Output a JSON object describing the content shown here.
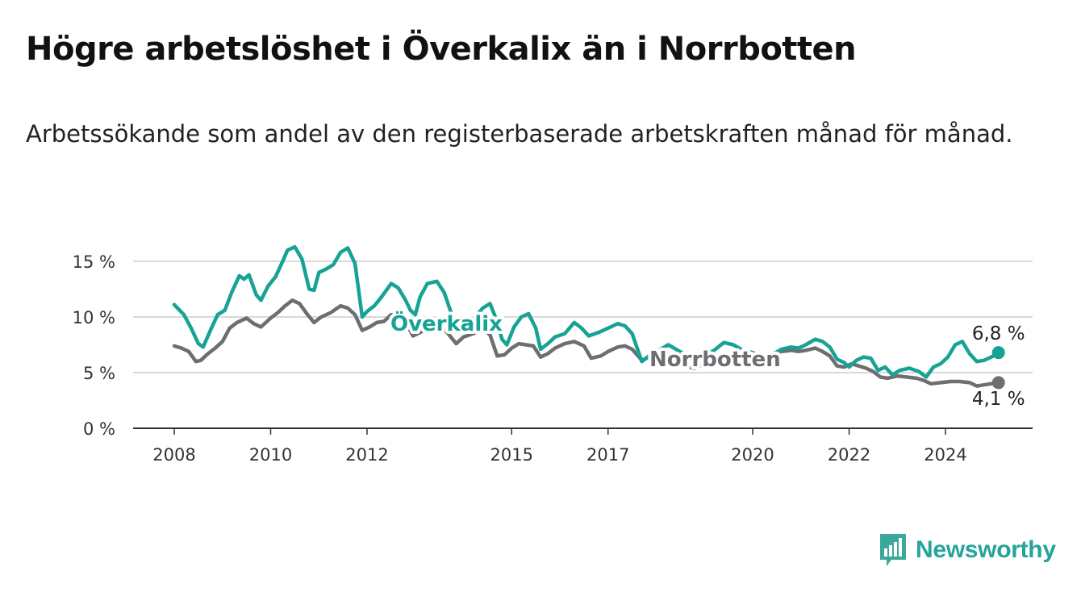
{
  "header": {
    "title": "Högre arbetslöshet i Överkalix än i Norrbotten",
    "subtitle": "Arbetssökande som andel av den registerbaserade arbetskraften månad för månad."
  },
  "brand": {
    "name": "Newsworthy",
    "icon": "bar-chart-icon",
    "color": "#25a49a"
  },
  "chart_data": {
    "type": "line",
    "title": "Högre arbetslöshet i Överkalix än i Norrbotten",
    "subtitle": "Arbetssökande som andel av den registerbaserade arbetskraften månad för månad.",
    "xlabel": "",
    "ylabel": "",
    "xlim": [
      2007.9,
      2025.3
    ],
    "ylim": [
      0,
      15
    ],
    "y_ticks": [
      0,
      5,
      10,
      15
    ],
    "y_tick_labels": [
      "0 %",
      "5 %",
      "10 %",
      "15 %"
    ],
    "x_ticks": [
      2008,
      2010,
      2012,
      2015,
      2017,
      2020,
      2022,
      2024
    ],
    "x_tick_labels": [
      "2008",
      "2010",
      "2012",
      "2015",
      "2017",
      "2020",
      "2022",
      "2024"
    ],
    "grid": "horizontal",
    "legend": "inline labels",
    "series": [
      {
        "name": "Överkalix",
        "color": "#16a394",
        "end_label": "6,8 %",
        "points": [
          [
            2008.0,
            11.1
          ],
          [
            2008.2,
            10.2
          ],
          [
            2008.35,
            9.0
          ],
          [
            2008.5,
            7.6
          ],
          [
            2008.6,
            7.3
          ],
          [
            2008.75,
            8.8
          ],
          [
            2008.9,
            10.2
          ],
          [
            2009.05,
            10.6
          ],
          [
            2009.2,
            12.3
          ],
          [
            2009.35,
            13.7
          ],
          [
            2009.45,
            13.4
          ],
          [
            2009.55,
            13.8
          ],
          [
            2009.7,
            12.0
          ],
          [
            2009.8,
            11.5
          ],
          [
            2009.95,
            12.8
          ],
          [
            2010.1,
            13.6
          ],
          [
            2010.25,
            15.0
          ],
          [
            2010.35,
            16.0
          ],
          [
            2010.5,
            16.3
          ],
          [
            2010.65,
            15.2
          ],
          [
            2010.8,
            12.5
          ],
          [
            2010.9,
            12.4
          ],
          [
            2011.0,
            14.0
          ],
          [
            2011.15,
            14.3
          ],
          [
            2011.3,
            14.7
          ],
          [
            2011.45,
            15.8
          ],
          [
            2011.6,
            16.2
          ],
          [
            2011.75,
            14.8
          ],
          [
            2011.9,
            10.0
          ],
          [
            2012.0,
            10.5
          ],
          [
            2012.15,
            11.0
          ],
          [
            2012.3,
            11.8
          ],
          [
            2012.5,
            13.0
          ],
          [
            2012.65,
            12.6
          ],
          [
            2012.8,
            11.5
          ],
          [
            2012.9,
            10.6
          ],
          [
            2013.0,
            10.2
          ],
          [
            2013.1,
            11.8
          ],
          [
            2013.25,
            13.0
          ],
          [
            2013.45,
            13.2
          ],
          [
            2013.6,
            12.2
          ],
          [
            2013.75,
            10.3
          ],
          [
            2013.9,
            9.3
          ],
          [
            2014.05,
            9.5
          ],
          [
            2014.2,
            9.8
          ],
          [
            2014.4,
            10.8
          ],
          [
            2014.55,
            11.2
          ],
          [
            2014.7,
            9.6
          ],
          [
            2014.8,
            8.0
          ],
          [
            2014.9,
            7.5
          ],
          [
            2015.05,
            9.1
          ],
          [
            2015.2,
            10.0
          ],
          [
            2015.35,
            10.3
          ],
          [
            2015.5,
            9.0
          ],
          [
            2015.6,
            7.1
          ],
          [
            2015.75,
            7.6
          ],
          [
            2015.9,
            8.2
          ],
          [
            2016.1,
            8.5
          ],
          [
            2016.3,
            9.5
          ],
          [
            2016.45,
            9.0
          ],
          [
            2016.6,
            8.3
          ],
          [
            2016.8,
            8.6
          ],
          [
            2017.0,
            9.0
          ],
          [
            2017.2,
            9.4
          ],
          [
            2017.35,
            9.2
          ],
          [
            2017.5,
            8.5
          ],
          [
            2017.7,
            6.0
          ],
          [
            2017.85,
            6.5
          ],
          [
            2018.05,
            7.0
          ],
          [
            2018.25,
            7.5
          ],
          [
            2018.45,
            7.0
          ],
          [
            2018.65,
            6.5
          ],
          [
            2018.85,
            6.0
          ],
          [
            2019.0,
            6.6
          ],
          [
            2019.2,
            7.0
          ],
          [
            2019.4,
            7.7
          ],
          [
            2019.6,
            7.5
          ],
          [
            2019.8,
            7.0
          ],
          [
            2020.0,
            6.8
          ],
          [
            2020.2,
            6.4
          ],
          [
            2020.4,
            6.6
          ],
          [
            2020.6,
            7.1
          ],
          [
            2020.8,
            7.3
          ],
          [
            2020.95,
            7.2
          ],
          [
            2021.1,
            7.5
          ],
          [
            2021.3,
            8.0
          ],
          [
            2021.45,
            7.8
          ],
          [
            2021.6,
            7.3
          ],
          [
            2021.75,
            6.2
          ],
          [
            2021.9,
            5.9
          ],
          [
            2022.0,
            5.5
          ],
          [
            2022.15,
            6.1
          ],
          [
            2022.3,
            6.4
          ],
          [
            2022.45,
            6.3
          ],
          [
            2022.6,
            5.2
          ],
          [
            2022.75,
            5.5
          ],
          [
            2022.9,
            4.8
          ],
          [
            2023.05,
            5.2
          ],
          [
            2023.25,
            5.4
          ],
          [
            2023.45,
            5.1
          ],
          [
            2023.6,
            4.6
          ],
          [
            2023.75,
            5.5
          ],
          [
            2023.9,
            5.8
          ],
          [
            2024.05,
            6.4
          ],
          [
            2024.2,
            7.5
          ],
          [
            2024.35,
            7.8
          ],
          [
            2024.5,
            6.7
          ],
          [
            2024.65,
            6.0
          ],
          [
            2024.8,
            6.1
          ],
          [
            2024.95,
            6.4
          ],
          [
            2025.1,
            6.8
          ]
        ]
      },
      {
        "name": "Norrbotten",
        "color": "#6e6d72",
        "end_label": "4,1 %",
        "points": [
          [
            2008.0,
            7.4
          ],
          [
            2008.15,
            7.2
          ],
          [
            2008.3,
            6.9
          ],
          [
            2008.45,
            6.0
          ],
          [
            2008.55,
            6.1
          ],
          [
            2008.7,
            6.7
          ],
          [
            2008.85,
            7.2
          ],
          [
            2009.0,
            7.8
          ],
          [
            2009.15,
            9.0
          ],
          [
            2009.3,
            9.5
          ],
          [
            2009.5,
            9.9
          ],
          [
            2009.65,
            9.4
          ],
          [
            2009.8,
            9.1
          ],
          [
            2010.0,
            9.9
          ],
          [
            2010.15,
            10.4
          ],
          [
            2010.3,
            11.0
          ],
          [
            2010.45,
            11.5
          ],
          [
            2010.6,
            11.2
          ],
          [
            2010.75,
            10.3
          ],
          [
            2010.9,
            9.5
          ],
          [
            2011.05,
            10.0
          ],
          [
            2011.25,
            10.4
          ],
          [
            2011.45,
            11.0
          ],
          [
            2011.6,
            10.8
          ],
          [
            2011.75,
            10.2
          ],
          [
            2011.9,
            8.8
          ],
          [
            2012.05,
            9.1
          ],
          [
            2012.2,
            9.5
          ],
          [
            2012.35,
            9.6
          ],
          [
            2012.5,
            10.2
          ],
          [
            2012.65,
            10.0
          ],
          [
            2012.8,
            9.6
          ],
          [
            2012.95,
            8.3
          ],
          [
            2013.1,
            8.6
          ],
          [
            2013.3,
            9.2
          ],
          [
            2013.5,
            9.4
          ],
          [
            2013.7,
            8.4
          ],
          [
            2013.85,
            7.6
          ],
          [
            2014.0,
            8.2
          ],
          [
            2014.2,
            8.5
          ],
          [
            2014.4,
            8.9
          ],
          [
            2014.55,
            8.4
          ],
          [
            2014.7,
            6.5
          ],
          [
            2014.85,
            6.6
          ],
          [
            2015.0,
            7.2
          ],
          [
            2015.15,
            7.6
          ],
          [
            2015.3,
            7.5
          ],
          [
            2015.45,
            7.4
          ],
          [
            2015.6,
            6.4
          ],
          [
            2015.75,
            6.7
          ],
          [
            2015.9,
            7.2
          ],
          [
            2016.1,
            7.6
          ],
          [
            2016.3,
            7.8
          ],
          [
            2016.5,
            7.4
          ],
          [
            2016.65,
            6.3
          ],
          [
            2016.85,
            6.5
          ],
          [
            2017.0,
            6.9
          ],
          [
            2017.2,
            7.3
          ],
          [
            2017.35,
            7.4
          ],
          [
            2017.5,
            7.1
          ],
          [
            2017.7,
            6.1
          ],
          [
            2017.85,
            6.4
          ],
          [
            2018.0,
            6.6
          ],
          [
            2018.2,
            6.4
          ],
          [
            2018.4,
            6.0
          ],
          [
            2018.6,
            5.6
          ],
          [
            2018.8,
            5.4
          ],
          [
            2019.0,
            5.8
          ],
          [
            2019.2,
            6.2
          ],
          [
            2019.4,
            6.3
          ],
          [
            2019.6,
            6.0
          ],
          [
            2019.8,
            5.8
          ],
          [
            2020.0,
            6.0
          ],
          [
            2020.2,
            6.3
          ],
          [
            2020.4,
            6.7
          ],
          [
            2020.6,
            6.9
          ],
          [
            2020.8,
            7.0
          ],
          [
            2020.95,
            6.9
          ],
          [
            2021.1,
            7.0
          ],
          [
            2021.3,
            7.2
          ],
          [
            2021.45,
            6.9
          ],
          [
            2021.6,
            6.5
          ],
          [
            2021.75,
            5.6
          ],
          [
            2021.9,
            5.5
          ],
          [
            2022.05,
            5.8
          ],
          [
            2022.2,
            5.6
          ],
          [
            2022.35,
            5.4
          ],
          [
            2022.5,
            5.1
          ],
          [
            2022.65,
            4.6
          ],
          [
            2022.8,
            4.5
          ],
          [
            2023.0,
            4.7
          ],
          [
            2023.2,
            4.6
          ],
          [
            2023.4,
            4.5
          ],
          [
            2023.55,
            4.3
          ],
          [
            2023.7,
            4.0
          ],
          [
            2023.9,
            4.1
          ],
          [
            2024.1,
            4.2
          ],
          [
            2024.3,
            4.2
          ],
          [
            2024.5,
            4.1
          ],
          [
            2024.65,
            3.8
          ],
          [
            2024.8,
            3.9
          ],
          [
            2024.95,
            4.0
          ],
          [
            2025.1,
            4.1
          ]
        ]
      }
    ]
  }
}
